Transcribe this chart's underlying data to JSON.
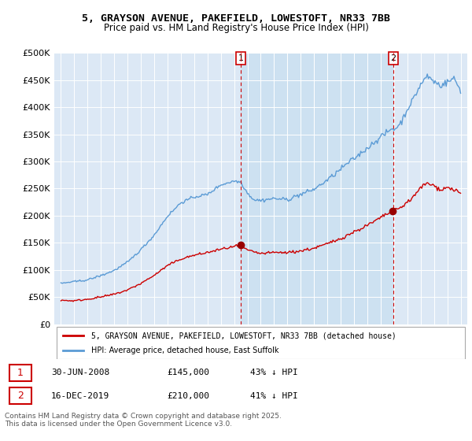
{
  "title": "5, GRAYSON AVENUE, PAKEFIELD, LOWESTOFT, NR33 7BB",
  "subtitle": "Price paid vs. HM Land Registry's House Price Index (HPI)",
  "ylabel_ticks": [
    "£0",
    "£50K",
    "£100K",
    "£150K",
    "£200K",
    "£250K",
    "£300K",
    "£350K",
    "£400K",
    "£450K",
    "£500K"
  ],
  "ytick_values": [
    0,
    50000,
    100000,
    150000,
    200000,
    250000,
    300000,
    350000,
    400000,
    450000,
    500000
  ],
  "ylim": [
    0,
    500000
  ],
  "legend_line1": "5, GRAYSON AVENUE, PAKEFIELD, LOWESTOFT, NR33 7BB (detached house)",
  "legend_line2": "HPI: Average price, detached house, East Suffolk",
  "marker1_date": "30-JUN-2008",
  "marker1_price": 145000,
  "marker1_pct": "43% ↓ HPI",
  "marker2_date": "16-DEC-2019",
  "marker2_price": 210000,
  "marker2_pct": "41% ↓ HPI",
  "footer": "Contains HM Land Registry data © Crown copyright and database right 2025.\nThis data is licensed under the Open Government Licence v3.0.",
  "hpi_color": "#5b9bd5",
  "price_color": "#cc0000",
  "bg_color": "#dce8f5",
  "shade_color": "#c8dff0",
  "marker_color": "#990000",
  "dashed_line_color": "#cc0000",
  "x_start_year": 1995,
  "x_end_year": 2025
}
